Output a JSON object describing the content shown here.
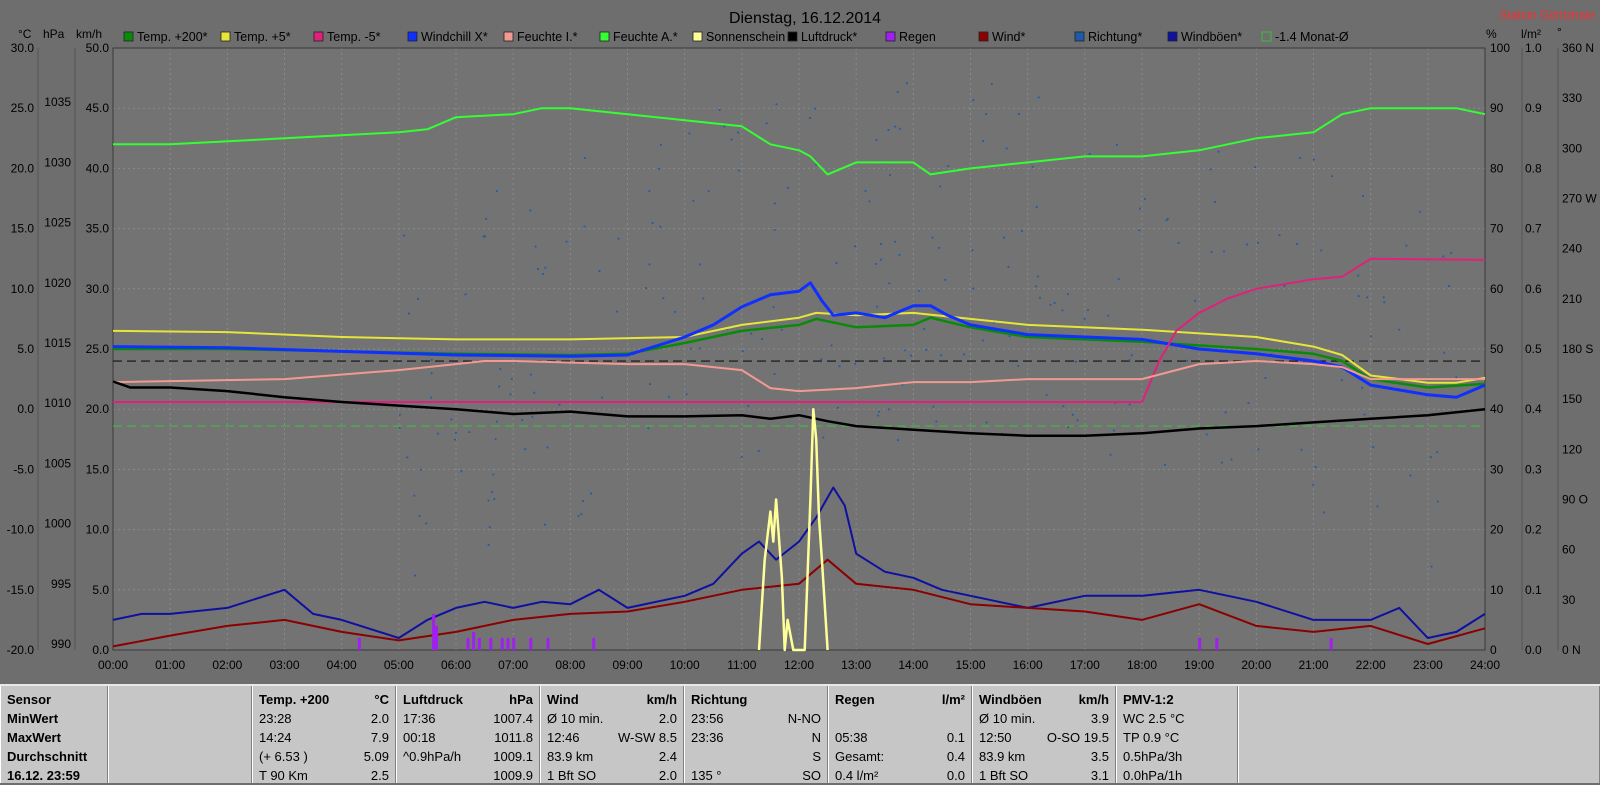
{
  "title": "Dienstag, 16.12.2014",
  "station": "Station Göritzhain",
  "colors": {
    "background": "#6e6e6e",
    "temp200": "#0a8a0a",
    "temp5": "#e6e63a",
    "tempm5": "#e0207a",
    "windchill": "#1030ff",
    "feuchte_i": "#f29a92",
    "feuchte_a": "#33ff33",
    "sonnenschein": "#ffff99",
    "luftdruck": "#000000",
    "regen": "#a020f0",
    "wind": "#8b0000",
    "richtung": "#1f5aa8",
    "windboeen": "#1010a0",
    "monat": "#3cbd3c"
  },
  "axis_units": {
    "celsius": "°C",
    "hpa": "hPa",
    "kmh": "km/h",
    "percent": "%",
    "lm2": "l/m²",
    "deg": "°"
  },
  "legend": [
    {
      "label": "Temp. +200*",
      "color": "#0a8a0a"
    },
    {
      "label": "Temp. +5*",
      "color": "#e6e63a"
    },
    {
      "label": "Temp. -5*",
      "color": "#e0207a"
    },
    {
      "label": "Windchill X*",
      "color": "#1030ff"
    },
    {
      "label": "Feuchte I.*",
      "color": "#f29a92"
    },
    {
      "label": "Feuchte A.*",
      "color": "#33ff33"
    },
    {
      "label": "Sonnenschein",
      "color": "#ffff99"
    },
    {
      "label": "Luftdruck*",
      "color": "#000000"
    },
    {
      "label": "Regen",
      "color": "#a020f0"
    },
    {
      "label": "Wind*",
      "color": "#8b0000"
    },
    {
      "label": "Richtung*",
      "color": "#1f5aa8"
    },
    {
      "label": "Windböen*",
      "color": "#1010a0"
    },
    {
      "label": "-1.4 Monat-Ø",
      "color": "#3cbd3c",
      "outline": true
    }
  ],
  "chart_data": {
    "type": "line",
    "x_axis": {
      "ticks": [
        "00:00",
        "01:00",
        "02:00",
        "03:00",
        "04:00",
        "05:00",
        "06:00",
        "07:00",
        "08:00",
        "09:00",
        "10:00",
        "11:00",
        "12:00",
        "13:00",
        "14:00",
        "15:00",
        "16:00",
        "17:00",
        "18:00",
        "19:00",
        "20:00",
        "21:00",
        "22:00",
        "23:00",
        "24:00"
      ],
      "range_hours": [
        0,
        24
      ]
    },
    "y_axes": {
      "celsius": {
        "ticks": [
          "30.0",
          "25.0",
          "20.0",
          "15.0",
          "10.0",
          "5.0",
          "0.0",
          "-5.0",
          "-10.0",
          "-15.0",
          "-20.0"
        ],
        "range": [
          -20,
          30
        ]
      },
      "hpa": {
        "ticks": [
          "1035",
          "1030",
          "1025",
          "1020",
          "1015",
          "1010",
          "1005",
          "1000",
          "995",
          "990"
        ],
        "range": [
          990,
          1040
        ]
      },
      "kmh": {
        "ticks": [
          "50.0",
          "45.0",
          "40.0",
          "35.0",
          "30.0",
          "25.0",
          "20.0",
          "15.0",
          "10.0",
          "5.0",
          "0.0"
        ],
        "range": [
          0,
          50
        ]
      },
      "percent": {
        "ticks": [
          "100",
          "90",
          "80",
          "70",
          "60",
          "50",
          "40",
          "30",
          "20",
          "10",
          "0"
        ],
        "range": [
          0,
          100
        ]
      },
      "lm2": {
        "ticks": [
          "1.0",
          "0.9",
          "0.8",
          "0.7",
          "0.6",
          "0.5",
          "0.4",
          "0.3",
          "0.2",
          "0.1",
          "0.0"
        ],
        "range": [
          0,
          1
        ]
      },
      "direction": {
        "ticks": [
          "360 N",
          "330",
          "300",
          "270 W",
          "240",
          "210",
          "180 S",
          "150",
          "120",
          "90 O",
          "60",
          "30",
          "0 N"
        ],
        "range": [
          0,
          360
        ]
      }
    },
    "reference_lines": [
      {
        "name": "black dashed",
        "celsius": 4.0
      },
      {
        "name": "-1.4 Monat-Ø",
        "celsius": -1.4
      }
    ],
    "series": [
      {
        "name": "Feuchte A.*",
        "axis": "percent",
        "x": [
          0,
          1,
          3,
          5,
          5.5,
          6,
          7,
          7.5,
          8,
          9,
          10,
          11,
          11.5,
          12,
          12.2,
          12.5,
          13,
          14,
          14.3,
          15,
          16,
          17,
          18,
          19,
          20,
          21,
          21.5,
          22,
          23,
          23.5,
          24
        ],
        "y": [
          84,
          84,
          85,
          86,
          86.5,
          88.5,
          89,
          90,
          90,
          89,
          88,
          87,
          84,
          83,
          82,
          79,
          81,
          81,
          79,
          80,
          81,
          82,
          82,
          83,
          85,
          86,
          89,
          90,
          90,
          90,
          89
        ]
      },
      {
        "name": "Temp. +5*",
        "axis": "celsius",
        "x": [
          0,
          2,
          4,
          6,
          8,
          10,
          11,
          12,
          12.3,
          13,
          14,
          15,
          16,
          18,
          20,
          21,
          21.5,
          22,
          23,
          23.5,
          24
        ],
        "y": [
          6.5,
          6.4,
          6.0,
          5.8,
          5.8,
          6.0,
          7.0,
          7.6,
          8.0,
          7.8,
          8.0,
          7.5,
          7.0,
          6.6,
          6.0,
          5.2,
          4.5,
          2.8,
          2.2,
          2.2,
          2.6
        ]
      },
      {
        "name": "Temp. +200*",
        "axis": "celsius",
        "x": [
          0,
          2,
          4,
          6,
          8,
          9,
          10,
          11,
          12,
          12.3,
          13,
          14,
          14.3,
          15,
          16,
          18,
          20,
          21,
          21.5,
          22,
          23,
          24
        ],
        "y": [
          5.0,
          5.0,
          4.8,
          4.6,
          4.5,
          4.6,
          5.5,
          6.5,
          7.0,
          7.5,
          6.8,
          7.0,
          7.6,
          6.8,
          6.0,
          5.6,
          5.0,
          4.6,
          4.0,
          2.5,
          1.8,
          2.1
        ]
      },
      {
        "name": "Windchill X*",
        "axis": "celsius",
        "x": [
          0,
          2,
          4,
          6,
          8,
          9,
          10,
          10.5,
          11,
          11.5,
          12,
          12.2,
          12.4,
          12.6,
          13,
          13.5,
          14,
          14.3,
          14.6,
          15,
          16,
          17,
          18,
          19,
          20,
          21,
          21.5,
          22,
          23,
          23.5,
          24
        ],
        "y": [
          5.2,
          5.1,
          4.8,
          4.5,
          4.4,
          4.5,
          6.0,
          7.0,
          8.5,
          9.5,
          9.8,
          10.5,
          9.0,
          7.8,
          8.0,
          7.6,
          8.6,
          8.6,
          7.8,
          7.0,
          6.2,
          6.0,
          5.8,
          5.0,
          4.6,
          4.0,
          3.5,
          2.0,
          1.2,
          1.0,
          2.0
        ]
      },
      {
        "name": "Temp. -5*",
        "axis": "celsius",
        "x": [
          0,
          18,
          18.3,
          18.6,
          19,
          19.5,
          20,
          21,
          21.5,
          22,
          24
        ],
        "y": [
          0.6,
          0.6,
          4.0,
          6.5,
          8.0,
          9.2,
          10.0,
          10.8,
          11.0,
          12.5,
          12.4
        ]
      },
      {
        "name": "Feuchte I.*",
        "axis": "percent",
        "x": [
          0,
          3,
          5,
          6,
          6.5,
          7,
          9,
          10,
          11,
          11.5,
          12,
          13,
          14,
          15,
          16,
          17,
          18,
          19,
          20,
          21,
          21.5,
          22,
          24
        ],
        "y": [
          44.5,
          45,
          46.5,
          47.5,
          48,
          48,
          47.5,
          47.5,
          46.5,
          43.5,
          43,
          43.5,
          44.5,
          44.5,
          45,
          45,
          45,
          47.5,
          48,
          47.5,
          47,
          45,
          45
        ]
      },
      {
        "name": "Luftdruck*",
        "axis": "hpa",
        "x": [
          0,
          0.3,
          1,
          2,
          3,
          4,
          5,
          6,
          7,
          8,
          9,
          10,
          11,
          11.5,
          12,
          12.5,
          13,
          14,
          15,
          16,
          17,
          18,
          19,
          20,
          21,
          22,
          23,
          24
        ],
        "y": [
          1012.3,
          1011.8,
          1011.8,
          1011.5,
          1011.0,
          1010.6,
          1010.3,
          1010.0,
          1009.6,
          1009.8,
          1009.4,
          1009.4,
          1009.5,
          1009.2,
          1009.5,
          1009.0,
          1008.6,
          1008.3,
          1008.0,
          1007.8,
          1007.8,
          1008.0,
          1008.4,
          1008.6,
          1008.9,
          1009.2,
          1009.5,
          1010.0
        ]
      },
      {
        "name": "Windböen*",
        "axis": "kmh",
        "x": [
          0,
          0.5,
          1,
          2,
          3,
          3.5,
          4,
          5,
          5.5,
          6,
          6.5,
          7,
          7.5,
          8,
          8.5,
          9,
          9.5,
          10,
          10.5,
          11,
          11.3,
          11.6,
          12,
          12.3,
          12.6,
          12.8,
          13,
          13.5,
          14,
          14.5,
          15,
          16,
          17,
          18,
          19,
          20,
          21,
          22,
          22.5,
          23,
          23.5,
          24
        ],
        "y": [
          2.5,
          3.0,
          3.0,
          3.5,
          5.0,
          3.0,
          2.5,
          1.0,
          2.5,
          3.5,
          4.0,
          3.5,
          4.0,
          3.8,
          5.0,
          3.5,
          4.0,
          4.5,
          5.5,
          8.0,
          9.0,
          7.5,
          9.0,
          11.0,
          13.5,
          12.0,
          8.0,
          6.5,
          6.0,
          5.0,
          4.5,
          3.5,
          4.5,
          4.5,
          5.0,
          4.0,
          2.5,
          2.5,
          3.5,
          1.0,
          1.5,
          3.0
        ]
      },
      {
        "name": "Wind*",
        "axis": "kmh",
        "x": [
          0,
          1,
          2,
          3,
          4,
          5,
          6,
          7,
          8,
          9,
          10,
          11,
          12,
          12.5,
          13,
          14,
          15,
          16,
          17,
          18,
          19,
          20,
          21,
          22,
          23,
          24
        ],
        "y": [
          0.3,
          1.2,
          2.0,
          2.5,
          1.5,
          0.8,
          1.5,
          2.5,
          3.0,
          3.2,
          4.0,
          5.0,
          5.5,
          7.5,
          5.5,
          5.0,
          3.8,
          3.5,
          3.2,
          2.5,
          3.8,
          2.0,
          1.5,
          2.0,
          0.5,
          1.8
        ]
      },
      {
        "name": "Sonnenschein",
        "axis": "lm2",
        "x": [
          11.3,
          11.4,
          11.5,
          11.55,
          11.6,
          11.7,
          11.75,
          11.8,
          11.9,
          12.0,
          12.1,
          12.2,
          12.25,
          12.3,
          12.35,
          12.4,
          12.5
        ],
        "y": [
          0.0,
          0.15,
          0.23,
          0.18,
          0.25,
          0.12,
          0.0,
          0.05,
          0.0,
          0.0,
          0.0,
          0.25,
          0.4,
          0.35,
          0.22,
          0.15,
          0.0
        ]
      },
      {
        "name": "Regen",
        "axis": "lm2",
        "x": [
          4.3,
          5.6,
          5.65,
          6.2,
          6.3,
          6.4,
          6.6,
          6.8,
          6.9,
          7.0,
          7.3,
          7.6,
          8.4,
          19.0,
          19.3,
          21.3
        ],
        "y": [
          0.02,
          0.06,
          0.04,
          0.02,
          0.03,
          0.02,
          0.02,
          0.02,
          0.02,
          0.02,
          0.02,
          0.02,
          0.02,
          0.02,
          0.02,
          0.02
        ]
      }
    ]
  },
  "table": {
    "columns": [
      {
        "title": "Sensor",
        "unit": "",
        "rows": [
          {
            "l": "MinWert",
            "m": "",
            "r": ""
          },
          {
            "l": "MaxWert",
            "m": "",
            "r": ""
          },
          {
            "l": "Durchschnitt",
            "m": "",
            "r": ""
          },
          {
            "l": "16.12. 23:59",
            "m": "",
            "r": ""
          }
        ]
      },
      {
        "title": "",
        "unit": "",
        "rows": [
          {
            "l": "",
            "m": "",
            "r": ""
          },
          {
            "l": "",
            "m": "",
            "r": ""
          },
          {
            "l": "",
            "m": "",
            "r": ""
          },
          {
            "l": "",
            "m": "",
            "r": ""
          }
        ]
      },
      {
        "title": "Temp. +200",
        "unit": "°C",
        "rows": [
          {
            "l": "23:28",
            "m": "",
            "r": "2.0"
          },
          {
            "l": "14:24",
            "m": "",
            "r": "7.9"
          },
          {
            "l": "(+ 6.53 )",
            "m": "",
            "r": "5.09"
          },
          {
            "l": "T 90 Km",
            "m": "",
            "r": "2.5"
          }
        ]
      },
      {
        "title": "Luftdruck",
        "unit": "hPa",
        "rows": [
          {
            "l": "17:36",
            "m": "",
            "r": "1007.4"
          },
          {
            "l": "00:18",
            "m": "",
            "r": "1011.8"
          },
          {
            "l": "^0.9hPa/h",
            "m": "",
            "r": "1009.1"
          },
          {
            "l": "",
            "m": "",
            "r": "1009.9"
          }
        ]
      },
      {
        "title": "Wind",
        "unit": "km/h",
        "rows": [
          {
            "l": "Ø 10 min.",
            "m": "",
            "r": "2.0"
          },
          {
            "l": "12:46",
            "m": "",
            "r": "W-SW 8.5"
          },
          {
            "l": "83.9 km",
            "m": "",
            "r": "2.4"
          },
          {
            "l": "1 Bft SO",
            "m": "",
            "r": "2.0"
          }
        ]
      },
      {
        "title": "Richtung",
        "unit": "",
        "rows": [
          {
            "l": "23:56",
            "m": "",
            "r": "N-NO"
          },
          {
            "l": "23:36",
            "m": "",
            "r": "N"
          },
          {
            "l": "",
            "m": "",
            "r": "S"
          },
          {
            "l": "135 °",
            "m": "",
            "r": "SO"
          }
        ]
      },
      {
        "title": "Regen",
        "unit": "l/m²",
        "rows": [
          {
            "l": "",
            "m": "",
            "r": ""
          },
          {
            "l": "05:38",
            "m": "",
            "r": "0.1"
          },
          {
            "l": "Gesamt:",
            "m": "",
            "r": "0.4"
          },
          {
            "l": "0.4 l/m²",
            "m": "",
            "r": "0.0"
          }
        ]
      },
      {
        "title": "Windböen",
        "unit": "km/h",
        "rows": [
          {
            "l": "Ø 10 min.",
            "m": "",
            "r": "3.9"
          },
          {
            "l": "12:50",
            "m": "",
            "r": "O-SO 19.5"
          },
          {
            "l": "83.9 km",
            "m": "",
            "r": "3.5"
          },
          {
            "l": "1 Bft SO",
            "m": "",
            "r": "3.1"
          }
        ]
      },
      {
        "title": "PMV-1:2",
        "unit": "",
        "rows": [
          {
            "l": "WC 2.5 °C",
            "m": "",
            "r": ""
          },
          {
            "l": "TP 0.9 °C",
            "m": "",
            "r": ""
          },
          {
            "l": "0.5hPa/3h",
            "m": "",
            "r": ""
          },
          {
            "l": "0.0hPa/1h",
            "m": "",
            "r": ""
          }
        ]
      },
      {
        "title": "",
        "unit": "",
        "rows": [
          {
            "l": "",
            "m": "",
            "r": ""
          },
          {
            "l": "",
            "m": "",
            "r": ""
          },
          {
            "l": "",
            "m": "",
            "r": ""
          },
          {
            "l": "",
            "m": "",
            "r": ""
          }
        ]
      }
    ]
  }
}
